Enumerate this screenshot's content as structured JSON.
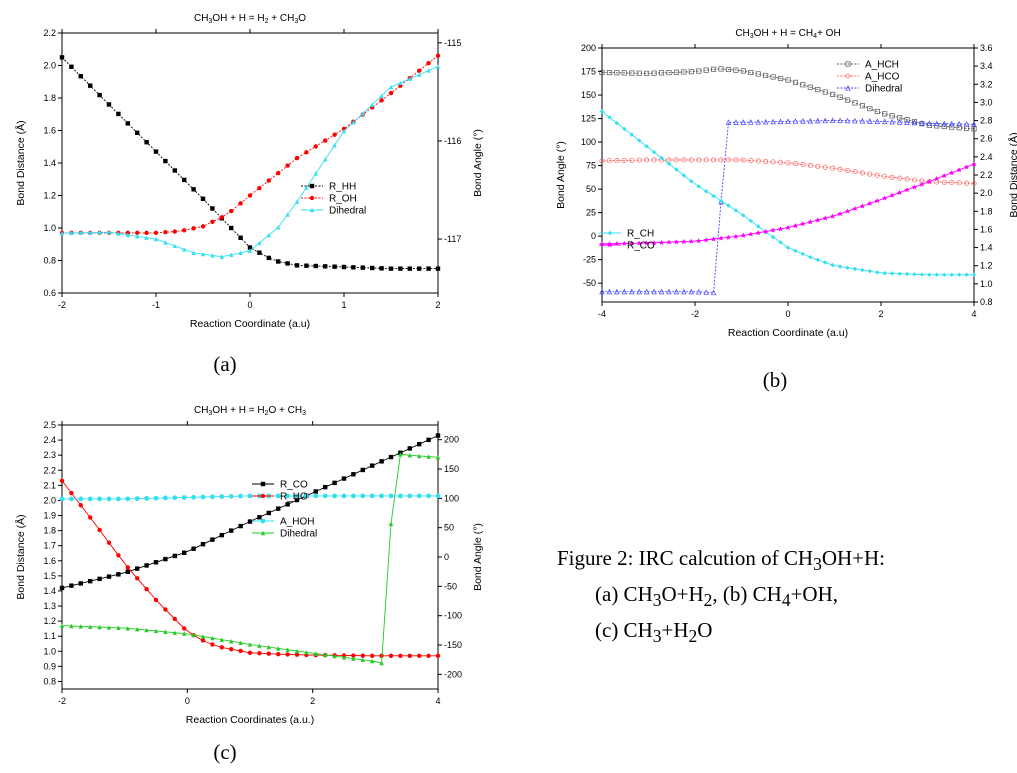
{
  "figure": {
    "sublabels": [
      "(a)",
      "(b)",
      "(c)"
    ],
    "caption": {
      "line1": [
        "Figure 2: IRC calcution of CH",
        "3",
        "OH+H:"
      ],
      "line2": [
        "(a) CH",
        "3",
        "O+H",
        "2",
        ", (b) CH",
        "4",
        "+OH,"
      ],
      "line3": [
        "(c) CH",
        "3",
        "+H",
        "2",
        "O"
      ]
    }
  },
  "chart_data": [
    {
      "id": "a",
      "type": "line",
      "title_parts": [
        "CH",
        "3",
        "OH + H = H",
        "2",
        " + CH",
        "3",
        "O"
      ],
      "xlabel": "Reaction Coordinate (a.u)",
      "ylabel_left": "Bond Distance (Å)",
      "ylabel_right": "Bond Angle (°)",
      "xlim": [
        -2,
        2
      ],
      "xticks": [
        -2,
        -1,
        0,
        1,
        2
      ],
      "ylim_left": [
        0.6,
        2.2
      ],
      "yticks_left": [
        0.6,
        0.8,
        1.0,
        1.2,
        1.4,
        1.6,
        1.8,
        2.0,
        2.2
      ],
      "ytick_left_labels": [
        "0.6",
        "0.8",
        "1.0",
        "1.2",
        "1.4",
        "1.6",
        "1.8",
        "2.0",
        "2.2"
      ],
      "ylim_right": [
        -117.55,
        -114.9
      ],
      "yticks_right": [
        -117,
        -116,
        -115
      ],
      "ytick_right_labels": [
        "-117",
        "-116",
        "-115"
      ],
      "legend": {
        "position": "right-middle"
      },
      "series": [
        {
          "name": "R_HH",
          "axis": "left",
          "color": "#000000",
          "marker": "square",
          "dashed": true,
          "x": [
            -2,
            -1.5,
            -1,
            -0.5,
            -0.25,
            0,
            0.25,
            0.5,
            1,
            1.5,
            2
          ],
          "y": [
            2.05,
            1.76,
            1.47,
            1.18,
            1.03,
            0.88,
            0.8,
            0.77,
            0.76,
            0.75,
            0.75
          ]
        },
        {
          "name": "R_OH",
          "axis": "left",
          "color": "#ff0000",
          "marker": "circle",
          "dashed": true,
          "x": [
            -2,
            -1.5,
            -1,
            -0.75,
            -0.5,
            -0.25,
            0,
            0.5,
            1,
            1.5,
            2
          ],
          "y": [
            0.97,
            0.97,
            0.97,
            0.98,
            1.01,
            1.08,
            1.2,
            1.43,
            1.61,
            1.83,
            2.06
          ]
        },
        {
          "name": "Dihedral",
          "axis": "right",
          "color": "#33e0f0",
          "marker": "triangle",
          "dashed": false,
          "x": [
            -2,
            -1.5,
            -1,
            -0.6,
            -0.3,
            0,
            0.3,
            0.5,
            1,
            1.5,
            2
          ],
          "y": [
            -116.94,
            -116.93,
            -117.0,
            -117.14,
            -117.18,
            -117.12,
            -116.88,
            -116.62,
            -115.9,
            -115.45,
            -115.24
          ]
        }
      ]
    },
    {
      "id": "b",
      "type": "line",
      "title_parts": [
        "CH",
        "3",
        "OH + H = CH",
        "4",
        "+ OH"
      ],
      "xlabel": "Reaction Coordinate (a.u)",
      "ylabel_left": "Bond Angle (°)",
      "ylabel_right": "Bond Distance (Å)",
      "xlim": [
        -4,
        4
      ],
      "xticks": [
        -4,
        -2,
        0,
        2,
        4
      ],
      "ylim_left": [
        -70,
        200
      ],
      "yticks_left": [
        -50,
        -25,
        0,
        25,
        50,
        75,
        100,
        125,
        150,
        175,
        200
      ],
      "ytick_left_labels": [
        "-50",
        "-25",
        "0",
        "25",
        "50",
        "75",
        "100",
        "125",
        "150",
        "175",
        "200"
      ],
      "ylim_right": [
        0.8,
        3.6
      ],
      "yticks_right": [
        0.8,
        1.0,
        1.2,
        1.4,
        1.6,
        1.8,
        2.0,
        2.2,
        2.4,
        2.6,
        2.8,
        3.0,
        3.2,
        3.4,
        3.6
      ],
      "ytick_right_labels": [
        "0.8",
        "1.0",
        "1.2",
        "1.4",
        "1.6",
        "1.8",
        "2.0",
        "2.2",
        "2.4",
        "2.6",
        "2.8",
        "3.0",
        "3.2",
        "3.4",
        "3.6"
      ],
      "legend": {
        "position": "top-right and left-middle"
      },
      "series": [
        {
          "name": "A_HCH",
          "axis": "left",
          "color": "#555555",
          "marker": "open-square",
          "dashed": true,
          "legend_group": "top",
          "x": [
            -4,
            -3,
            -2,
            -1.5,
            -1,
            0,
            1,
            2,
            3,
            4
          ],
          "y": [
            174,
            173,
            175,
            178,
            176,
            166,
            150,
            131,
            118,
            114
          ]
        },
        {
          "name": "A_HCO",
          "axis": "left",
          "color": "#ff6666",
          "marker": "open-circle",
          "dashed": true,
          "legend_group": "top",
          "x": [
            -4,
            -3,
            -2,
            -1,
            0,
            1,
            2,
            3,
            4
          ],
          "y": [
            80,
            81,
            81,
            81,
            78,
            72,
            64,
            58,
            56
          ]
        },
        {
          "name": "Dihedral",
          "axis": "left",
          "color": "#4444ff",
          "marker": "open-triangle",
          "dashed": true,
          "legend_group": "top",
          "x": [
            -4,
            -3,
            -2,
            -1.6,
            -1.3,
            -1,
            0,
            1,
            2,
            3,
            4
          ],
          "y": [
            -59,
            -59,
            -59,
            -60,
            121,
            121,
            122,
            123,
            122,
            120,
            119
          ]
        },
        {
          "name": "R_CH",
          "axis": "right",
          "color": "#33e0f0",
          "marker": "diamond",
          "dashed": false,
          "legend_group": "middle",
          "x": [
            -4,
            -3,
            -2,
            -1,
            -0.5,
            0,
            0.5,
            1,
            2,
            3,
            4
          ],
          "y": [
            2.9,
            2.5,
            2.1,
            1.77,
            1.58,
            1.4,
            1.29,
            1.2,
            1.12,
            1.1,
            1.1
          ]
        },
        {
          "name": "R_CO",
          "axis": "right",
          "color": "#ff00ff",
          "marker": "star",
          "dashed": false,
          "legend_group": "middle",
          "x": [
            -4,
            -3,
            -2,
            -1,
            0,
            1,
            2,
            3,
            4
          ],
          "y": [
            1.44,
            1.45,
            1.47,
            1.53,
            1.62,
            1.75,
            1.93,
            2.12,
            2.32
          ]
        }
      ]
    },
    {
      "id": "c",
      "type": "line",
      "title_parts": [
        "CH",
        "3",
        "OH + H = H",
        "2",
        "O + CH",
        "3"
      ],
      "xlabel": "Reaction Coordinates (a.u.)",
      "ylabel_left": "Bond Distance (Å)",
      "ylabel_right": "Bond Angle (°)",
      "xlim": [
        -2,
        4
      ],
      "xticks": [
        -2,
        0,
        2,
        4
      ],
      "ylim_left": [
        0.75,
        2.5
      ],
      "yticks_left": [
        0.8,
        0.9,
        1.0,
        1.1,
        1.2,
        1.3,
        1.4,
        1.5,
        1.6,
        1.7,
        1.8,
        1.9,
        2.0,
        2.1,
        2.2,
        2.3,
        2.4,
        2.5
      ],
      "ytick_left_labels": [
        "0.8",
        "0.9",
        "1.0",
        "1.1",
        "1.2",
        "1.3",
        "1.4",
        "1.5",
        "1.6",
        "1.7",
        "1.8",
        "1.9",
        "2.0",
        "2.1",
        "2.2",
        "2.3",
        "2.4",
        "2.5"
      ],
      "ylim_right": [
        -225,
        225
      ],
      "yticks_right": [
        -200,
        -150,
        -100,
        -50,
        0,
        50,
        100,
        150,
        200
      ],
      "ytick_right_labels": [
        "-200",
        "-150",
        "-100",
        "-50",
        "0",
        "50",
        "100",
        "150",
        "200"
      ],
      "legend": {
        "position": "center"
      },
      "series": [
        {
          "name": "R_CO",
          "axis": "left",
          "color": "#000000",
          "marker": "square",
          "dashed": false,
          "x": [
            -2,
            -1,
            0,
            0.5,
            1,
            2,
            3,
            4
          ],
          "y": [
            1.42,
            1.52,
            1.66,
            1.76,
            1.86,
            2.05,
            2.24,
            2.43
          ]
        },
        {
          "name": "R_HO",
          "axis": "left",
          "color": "#ff0000",
          "marker": "circle",
          "dashed": false,
          "x": [
            -2,
            -1.5,
            -1,
            -0.5,
            0,
            0.3,
            0.5,
            1,
            1.5,
            2,
            3,
            4
          ],
          "y": [
            2.13,
            1.86,
            1.58,
            1.34,
            1.13,
            1.06,
            1.03,
            0.99,
            0.98,
            0.975,
            0.97,
            0.97
          ]
        },
        {
          "name": "A_HOH",
          "axis": "left",
          "color": "#33e0f0",
          "marker": "dot",
          "dashed": false,
          "x": [
            -2,
            -1,
            0,
            1,
            2,
            3,
            4
          ],
          "y": [
            2.01,
            2.01,
            2.02,
            2.03,
            2.03,
            2.03,
            2.03
          ]
        },
        {
          "name": "Dihedral",
          "axis": "right",
          "color": "#22cc22",
          "marker": "triangle",
          "dashed": false,
          "x": [
            -2,
            -1,
            0,
            0.5,
            1,
            2,
            3,
            3.15,
            3.3,
            3.6,
            4
          ],
          "y": [
            -117,
            -121,
            -131,
            -140,
            -149,
            -164,
            -178,
            -182,
            176,
            173,
            170
          ]
        }
      ]
    }
  ]
}
